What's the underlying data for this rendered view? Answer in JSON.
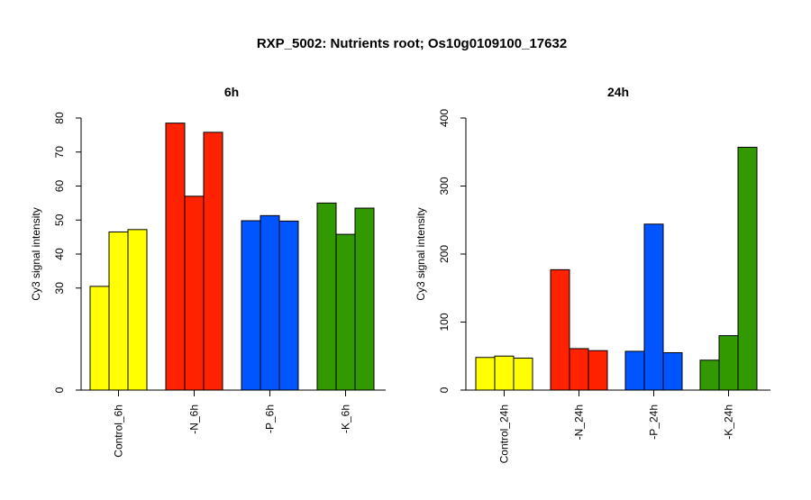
{
  "title": "RXP_5002: Nutrients root; Os10g0109100_17632",
  "chart_data": [
    {
      "type": "bar",
      "title": "6h",
      "ylabel": "Cy3 signal intensity",
      "ylim": [
        0,
        80
      ],
      "yticks": [
        0,
        30,
        40,
        50,
        60,
        70,
        80
      ],
      "categories": [
        "Control_6h",
        "-N_6h",
        "-P_6h",
        "-K_6h"
      ],
      "colors": [
        "#ffff00",
        "#ff2200",
        "#0055ff",
        "#339900"
      ],
      "values": [
        [
          30.5,
          46.5,
          47.2
        ],
        [
          78.5,
          57.0,
          75.8
        ],
        [
          49.8,
          51.3,
          49.7
        ],
        [
          55.0,
          45.8,
          53.5
        ]
      ],
      "grid": false
    },
    {
      "type": "bar",
      "title": "24h",
      "ylabel": "Cy3 signal intensity",
      "ylim": [
        0,
        400
      ],
      "yticks": [
        0,
        100,
        200,
        300,
        400
      ],
      "categories": [
        "Control_24h",
        "-N_24h",
        "-P_24h",
        "-K_24h"
      ],
      "colors": [
        "#ffff00",
        "#ff2200",
        "#0055ff",
        "#339900"
      ],
      "values": [
        [
          48,
          50,
          47
        ],
        [
          177,
          61,
          58
        ],
        [
          57,
          244,
          55
        ],
        [
          44,
          80,
          357
        ]
      ],
      "grid": false
    }
  ]
}
